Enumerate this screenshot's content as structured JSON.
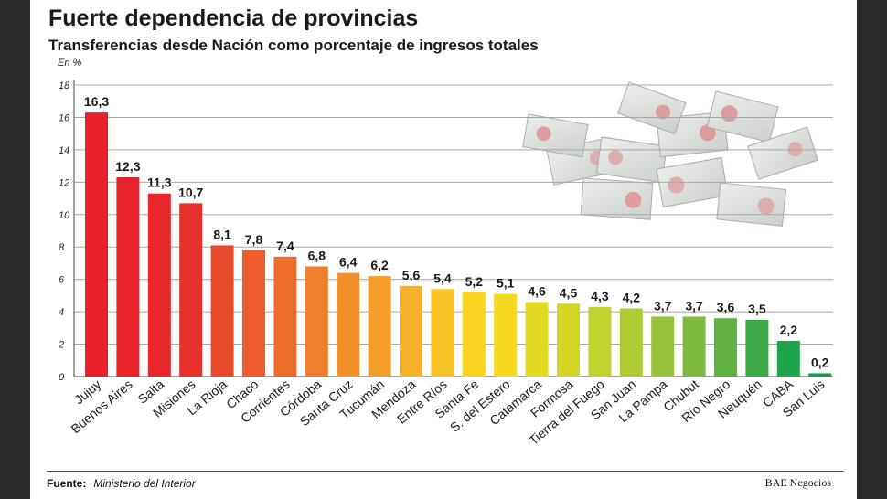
{
  "header": {
    "title": "Fuerte dependencia de provincias",
    "subtitle": "Transferencias desde Nación como porcentaje de ingresos totales",
    "unit": "En %"
  },
  "footer": {
    "source_label": "Fuente:",
    "source_value": "Ministerio del Interior",
    "brand": "BAE Negocios"
  },
  "chart_data": {
    "type": "bar",
    "title": "Fuerte dependencia de provincias",
    "subtitle": "Transferencias desde Nación como porcentaje de ingresos totales",
    "ylabel": "En %",
    "xlabel": "",
    "ylim": [
      0,
      18
    ],
    "yticks": [
      0,
      2,
      4,
      6,
      8,
      10,
      12,
      14,
      16,
      18
    ],
    "grid": true,
    "categories": [
      "Jujuy",
      "Buenos Aires",
      "Salta",
      "Misiones",
      "La Rioja",
      "Chaco",
      "Corrientes",
      "Córdoba",
      "Santa Cruz",
      "Tucumán",
      "Mendoza",
      "Entre Ríos",
      "Santa Fe",
      "S. del Estero",
      "Catamarca",
      "Formosa",
      "Tierra del Fuego",
      "San Juan",
      "La Pampa",
      "Chubut",
      "Río Negro",
      "Neuquén",
      "CABA",
      "San Luis"
    ],
    "values": [
      16.3,
      12.3,
      11.3,
      10.7,
      8.1,
      7.8,
      7.4,
      6.8,
      6.4,
      6.2,
      5.6,
      5.4,
      5.2,
      5.1,
      4.6,
      4.5,
      4.3,
      4.2,
      3.7,
      3.7,
      3.6,
      3.5,
      2.2,
      0.2
    ],
    "value_labels": [
      "16,3",
      "12,3",
      "11,3",
      "10,7",
      "8,1",
      "7,8",
      "7,4",
      "6,8",
      "6,4",
      "6,2",
      "5,6",
      "5,4",
      "5,2",
      "5,1",
      "4,6",
      "4,5",
      "4,3",
      "4,2",
      "3,7",
      "3,7",
      "3,6",
      "3,5",
      "2,2",
      "0,2"
    ],
    "colors": [
      "#e8202a",
      "#e8242a",
      "#e8282a",
      "#e8302a",
      "#ea4a2c",
      "#ec5c2c",
      "#ee6e2c",
      "#f07f2c",
      "#f2902c",
      "#f49e2a",
      "#f6b22a",
      "#f8c224",
      "#fad220",
      "#f6d81e",
      "#e6da20",
      "#d4d626",
      "#c2d22e",
      "#aecb34",
      "#96c23c",
      "#7eba3e",
      "#5fb242",
      "#3cab46",
      "#20a44a",
      "#139f4a"
    ]
  }
}
